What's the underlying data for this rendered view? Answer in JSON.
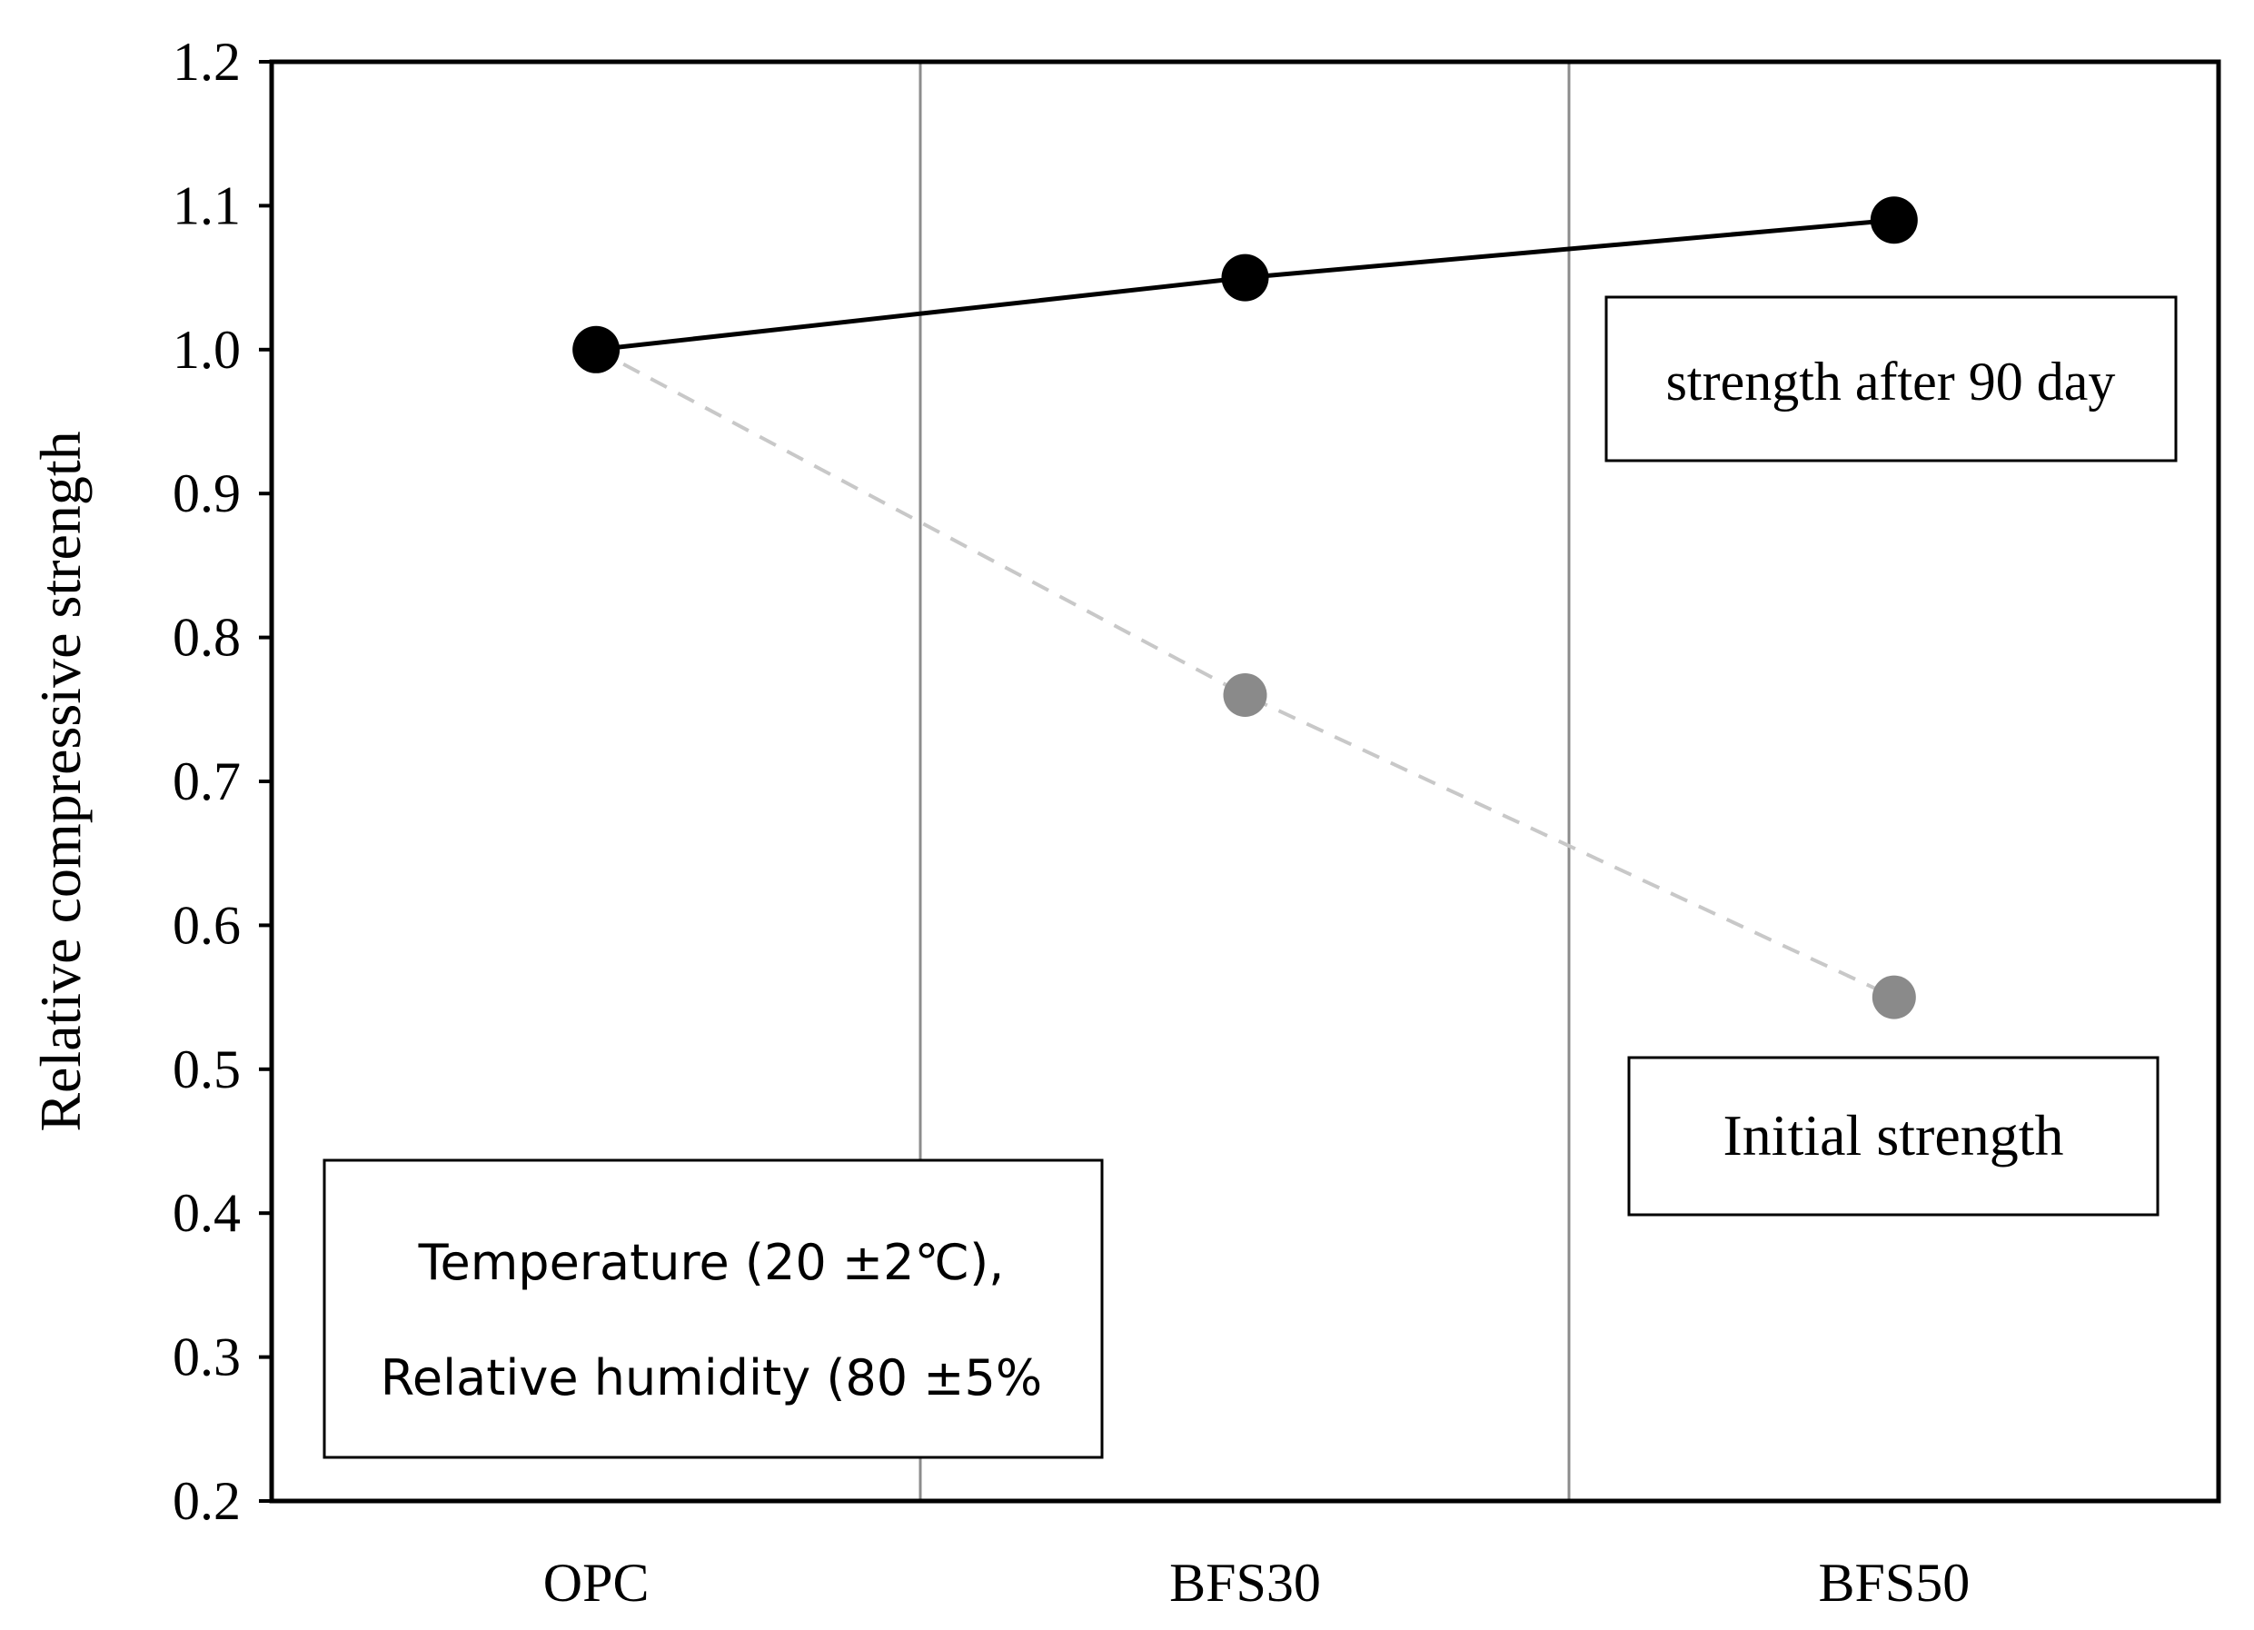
{
  "chart_data": {
    "type": "line",
    "title": "",
    "xlabel": "",
    "ylabel": "Relative compressive strength",
    "categories": [
      "OPC",
      "BFS30",
      "BFS50"
    ],
    "ylim": [
      0.2,
      1.2
    ],
    "yticks": [
      "0.2",
      "0.3",
      "0.4",
      "0.5",
      "0.6",
      "0.7",
      "0.8",
      "0.9",
      "1.0",
      "1.1",
      "1.2"
    ],
    "series": [
      {
        "name": "strength after 90 day",
        "values": [
          1.0,
          1.05,
          1.09
        ],
        "color": "#000000",
        "marker_color": "#000000",
        "line_style": "solid"
      },
      {
        "name": "Initial strength",
        "values": [
          1.0,
          0.76,
          0.55
        ],
        "color": "#c8c8c8",
        "marker_color": "#8a8a8a",
        "line_style": "dashed"
      }
    ],
    "annotations": {
      "conditions_line1": "Temperature (20 ±2℃),",
      "conditions_line2": "Relative humidity (80 ±5%",
      "label_90day": "strength after 90 day",
      "label_initial": "Initial strength"
    }
  }
}
